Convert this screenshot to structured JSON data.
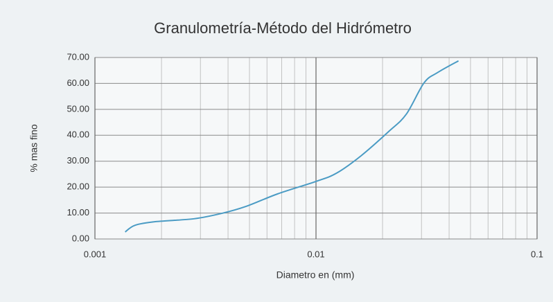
{
  "chart_data": {
    "type": "line",
    "title": "Granulometría-Método del Hidrómetro",
    "xlabel": "Diametro en (mm)",
    "ylabel": "% mas fino",
    "xscale": "log",
    "xlim": [
      0.001,
      0.1
    ],
    "xticks": [
      0.001,
      0.01,
      0.1
    ],
    "ylim": [
      0,
      70
    ],
    "yticks": [
      {
        "value": 0,
        "label": "0.00"
      },
      {
        "value": 10,
        "label": "10.00"
      },
      {
        "value": 20,
        "label": "20.00"
      },
      {
        "value": 30,
        "label": "30.00"
      },
      {
        "value": 40,
        "label": "40.00"
      },
      {
        "value": 50,
        "label": "50.00"
      },
      {
        "value": 60,
        "label": "60.00"
      },
      {
        "value": 70,
        "label": "70.00"
      }
    ],
    "grid": true,
    "x": [
      0.00137,
      0.00152,
      0.00189,
      0.00281,
      0.00376,
      0.00484,
      0.00671,
      0.01,
      0.0124,
      0.016,
      0.0213,
      0.0256,
      0.0308,
      0.0355,
      0.0441
    ],
    "series": [
      {
        "color": "#4a9bc4",
        "values": [
          2.7,
          5.3,
          6.7,
          7.8,
          9.9,
          12.6,
          17.4,
          22.2,
          25.4,
          32.1,
          41.4,
          48.1,
          60.2,
          64.2,
          68.7
        ]
      }
    ]
  }
}
